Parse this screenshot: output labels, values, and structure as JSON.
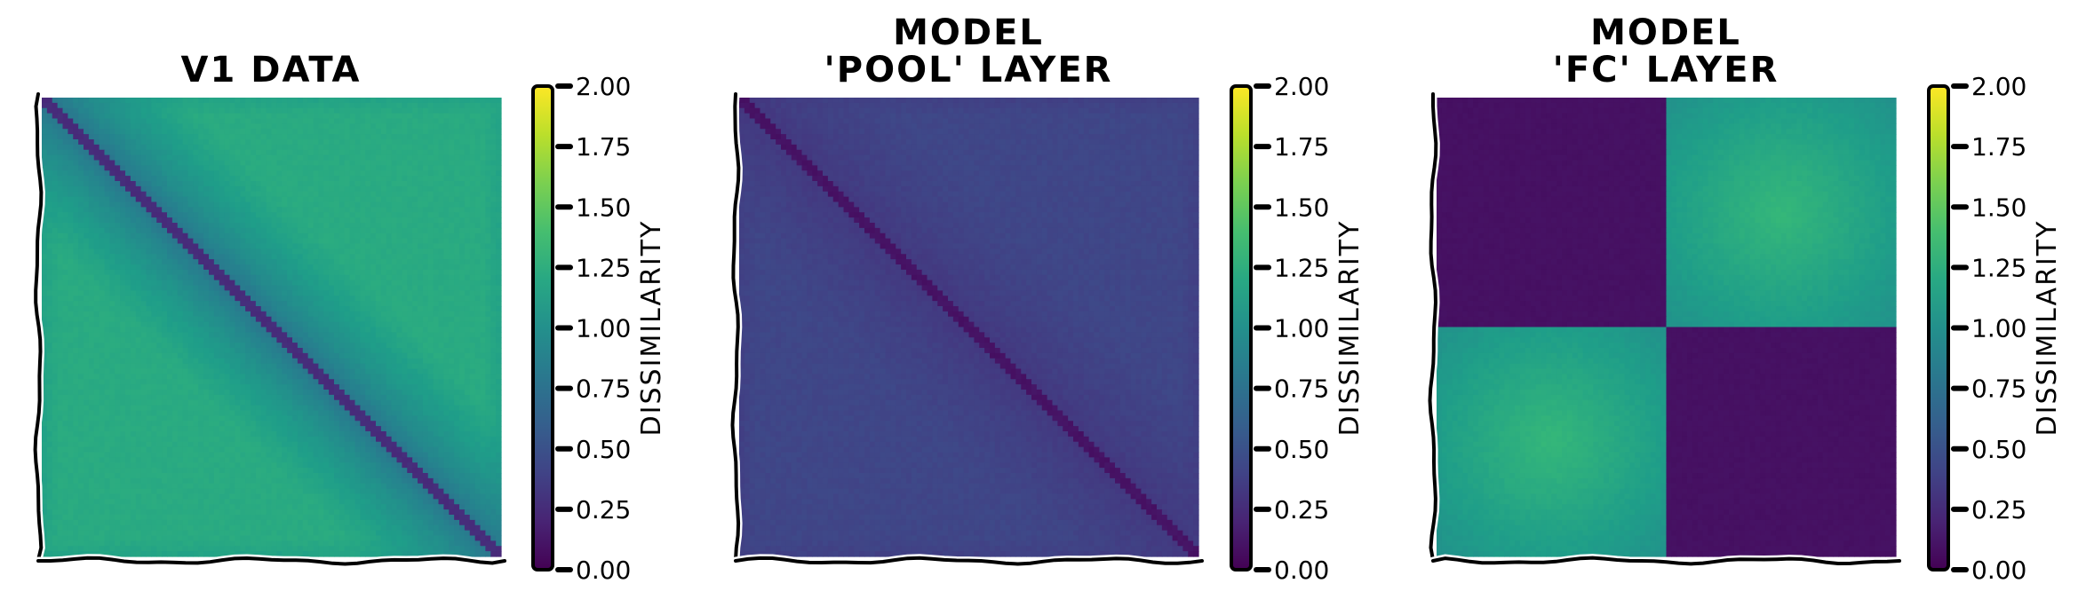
{
  "chart_data": [
    {
      "type": "heatmap",
      "title": "V1 DATA",
      "title_lines": [
        "V1 DATA"
      ],
      "pattern": "diagonal",
      "values": {
        "diagonal": 0.25,
        "near_diagonal": 0.65,
        "background": 1.22,
        "corner_edges": 1.15
      },
      "colorbar": {
        "label": "DISSIMILARITY",
        "range": [
          0.0,
          2.0
        ],
        "ticks": [
          "0.00",
          "0.25",
          "0.50",
          "0.75",
          "1.00",
          "1.25",
          "1.50",
          "1.75",
          "2.00"
        ],
        "colormap": "viridis"
      }
    },
    {
      "type": "heatmap",
      "title": "MODEL 'POOL' LAYER",
      "title_lines": [
        "MODEL",
        "'POOL' LAYER"
      ],
      "pattern": "diagonal",
      "values": {
        "diagonal": 0.1,
        "near_diagonal": 0.3,
        "background": 0.42,
        "corner_edges": 0.38
      },
      "colorbar": {
        "label": "DISSIMILARITY",
        "range": [
          0.0,
          2.0
        ],
        "ticks": [
          "0.00",
          "0.25",
          "0.50",
          "0.75",
          "1.00",
          "1.25",
          "1.50",
          "1.75",
          "2.00"
        ],
        "colormap": "viridis"
      }
    },
    {
      "type": "heatmap",
      "title": "MODEL 'FC' LAYER",
      "title_lines": [
        "MODEL",
        "'FC' LAYER"
      ],
      "pattern": "blocks",
      "values": {
        "within_block": 0.08,
        "between_block_edge": 1.0,
        "between_block_center": 1.33,
        "block_split": 0.5
      },
      "colorbar": {
        "label": "DISSIMILARITY",
        "range": [
          0.0,
          2.0
        ],
        "ticks": [
          "0.00",
          "0.25",
          "0.50",
          "0.75",
          "1.00",
          "1.25",
          "1.50",
          "1.75",
          "2.00"
        ],
        "colormap": "viridis"
      }
    }
  ]
}
